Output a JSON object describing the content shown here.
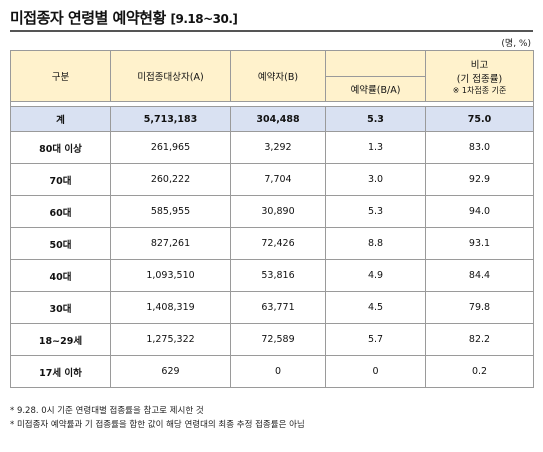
{
  "title": "미접종자 연령별 예약현황",
  "title_period": "[9.18~30.]",
  "unit": "(명, %)",
  "headers": {
    "group": "구분",
    "unvaccinated": "미접종대상자(A)",
    "reserved": "예약자(B)",
    "rate": "예약률(B/A)",
    "note_main": "비고",
    "note_sub1": "(기 접종률)",
    "note_sub2": "※ 1차접종 기준"
  },
  "total": {
    "label": "계",
    "unvaccinated": "5,713,183",
    "reserved": "304,488",
    "rate": "5.3",
    "note": "75.0"
  },
  "rows": [
    {
      "label": "80대 이상",
      "unvaccinated": "261,965",
      "reserved": "3,292",
      "rate": "1.3",
      "note": "83.0"
    },
    {
      "label": "70대",
      "unvaccinated": "260,222",
      "reserved": "7,704",
      "rate": "3.0",
      "note": "92.9"
    },
    {
      "label": "60대",
      "unvaccinated": "585,955",
      "reserved": "30,890",
      "rate": "5.3",
      "note": "94.0"
    },
    {
      "label": "50대",
      "unvaccinated": "827,261",
      "reserved": "72,426",
      "rate": "8.8",
      "note": "93.1"
    },
    {
      "label": "40대",
      "unvaccinated": "1,093,510",
      "reserved": "53,816",
      "rate": "4.9",
      "note": "84.4"
    },
    {
      "label": "30대",
      "unvaccinated": "1,408,319",
      "reserved": "63,771",
      "rate": "4.5",
      "note": "79.8"
    },
    {
      "label": "18~29세",
      "unvaccinated": "1,275,322",
      "reserved": "72,589",
      "rate": "5.7",
      "note": "82.2"
    },
    {
      "label": "17세 이하",
      "unvaccinated": "629",
      "reserved": "0",
      "rate": "0",
      "note": "0.2"
    }
  ],
  "notes": [
    "* 9.28. 0시 기준 연령대별 접종률을 참고로 제시한 것",
    "* 미접종자 예약률과 기 접종률을 합한 값이 해당 연령대의 최종 추정 접종률은 아님"
  ]
}
